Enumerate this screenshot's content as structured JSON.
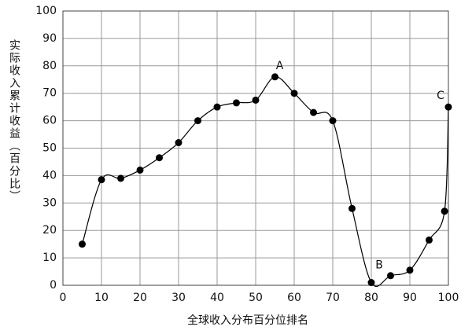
{
  "chart_data": {
    "type": "line",
    "x_label": "全球收入分布百分位排名",
    "y_label": "实际收入累计收益（百分比）",
    "x": [
      5,
      10,
      15,
      20,
      25,
      30,
      35,
      40,
      45,
      50,
      55,
      60,
      65,
      70,
      75,
      80,
      85,
      90,
      95,
      99,
      100
    ],
    "series": [
      {
        "color": "#000000",
        "values": [
          15,
          38.5,
          39,
          42,
          46.5,
          52,
          60,
          65,
          66.5,
          67.5,
          76,
          70,
          63,
          60,
          28,
          1,
          3.5,
          5.5,
          16.5,
          27,
          65
        ]
      }
    ],
    "annotations": [
      "A",
      "B",
      "C"
    ],
    "xlim": [
      0,
      100
    ],
    "xticks": [
      0,
      10,
      20,
      30,
      40,
      50,
      60,
      70,
      80,
      90,
      100
    ],
    "ylim": [
      0,
      100
    ],
    "yticks": [
      0,
      10,
      20,
      30,
      40,
      50,
      60,
      70,
      80,
      90,
      100
    ],
    "grid": true
  }
}
